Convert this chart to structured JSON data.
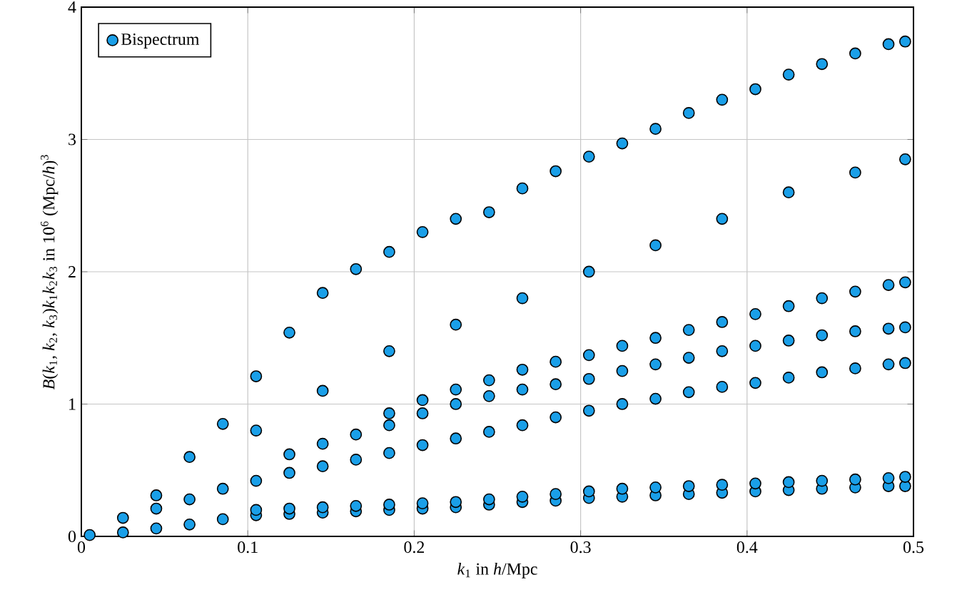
{
  "chart_data": {
    "type": "scatter",
    "xlabel": "*k*$_{1}$ in *h*/Mpc",
    "ylabel": "*B*(*k*$_{1}$, *k*$_{2}$, *k*$_{3}$)*k*$_{1}$*k*$_{2}$*k*$_{3}$ in 10$^{6}$ (Mpc/*h*)$^{3}$",
    "xlim": [
      0,
      0.5
    ],
    "ylim": [
      0,
      4
    ],
    "xticks": [
      0,
      0.1,
      0.2,
      0.3,
      0.4,
      0.5
    ],
    "yticks": [
      0,
      1,
      2,
      3,
      4
    ],
    "grid": true,
    "legend": "top left",
    "marker": "circle",
    "series": [
      {
        "name": "Bispectrum",
        "color": "#1a9fe8",
        "x": [
          0.005,
          0.025,
          0.045,
          0.065,
          0.085,
          0.105,
          0.125,
          0.145,
          0.165,
          0.185,
          0.205,
          0.225,
          0.245,
          0.265,
          0.285,
          0.305,
          0.325,
          0.345,
          0.365,
          0.385,
          0.405,
          0.425,
          0.445,
          0.465,
          0.485,
          0.495,
          0.025,
          0.045,
          0.065,
          0.085,
          0.105,
          0.125,
          0.145,
          0.165,
          0.185,
          0.205,
          0.225,
          0.245,
          0.265,
          0.285,
          0.305,
          0.325,
          0.345,
          0.365,
          0.385,
          0.405,
          0.425,
          0.445,
          0.465,
          0.485,
          0.495,
          0.105,
          0.125,
          0.145,
          0.165,
          0.185,
          0.205,
          0.225,
          0.245,
          0.265,
          0.285,
          0.305,
          0.325,
          0.345,
          0.365,
          0.385,
          0.405,
          0.425,
          0.445,
          0.465,
          0.485,
          0.495,
          0.045,
          0.065,
          0.085,
          0.105,
          0.125,
          0.145,
          0.165,
          0.185,
          0.205,
          0.225,
          0.245,
          0.265,
          0.285,
          0.305,
          0.325,
          0.345,
          0.365,
          0.385,
          0.405,
          0.425,
          0.445,
          0.465,
          0.485,
          0.495,
          0.125,
          0.145,
          0.165,
          0.185,
          0.205,
          0.225,
          0.245,
          0.265,
          0.285,
          0.305,
          0.325,
          0.345,
          0.365,
          0.385,
          0.405,
          0.425,
          0.445,
          0.465,
          0.485,
          0.495,
          0.185,
          0.205,
          0.225,
          0.245,
          0.265,
          0.285,
          0.305,
          0.325,
          0.345,
          0.365,
          0.385,
          0.405,
          0.425,
          0.445,
          0.465,
          0.485,
          0.495,
          0.105,
          0.145,
          0.185,
          0.225,
          0.265,
          0.305,
          0.345,
          0.385,
          0.425,
          0.465,
          0.495
        ],
        "values": [
          0.01,
          0.14,
          0.31,
          0.6,
          0.85,
          1.21,
          1.54,
          1.84,
          2.02,
          2.15,
          2.3,
          2.4,
          2.45,
          2.63,
          2.76,
          2.87,
          2.97,
          3.08,
          3.2,
          3.3,
          3.38,
          3.49,
          3.57,
          3.65,
          3.72,
          3.74,
          0.03,
          0.06,
          0.09,
          0.13,
          0.16,
          0.17,
          0.18,
          0.19,
          0.2,
          0.21,
          0.22,
          0.24,
          0.26,
          0.27,
          0.29,
          0.3,
          0.31,
          0.32,
          0.33,
          0.34,
          0.35,
          0.36,
          0.37,
          0.38,
          0.38,
          0.2,
          0.21,
          0.22,
          0.23,
          0.24,
          0.25,
          0.26,
          0.28,
          0.3,
          0.32,
          0.34,
          0.36,
          0.37,
          0.38,
          0.39,
          0.4,
          0.41,
          0.42,
          0.43,
          0.44,
          0.45,
          0.21,
          0.28,
          0.36,
          0.42,
          0.48,
          0.53,
          0.58,
          0.63,
          0.69,
          0.74,
          0.79,
          0.84,
          0.9,
          0.95,
          1.0,
          1.04,
          1.09,
          1.13,
          1.16,
          1.2,
          1.24,
          1.27,
          1.3,
          1.31,
          0.62,
          0.7,
          0.77,
          0.84,
          0.93,
          1.0,
          1.06,
          1.11,
          1.15,
          1.19,
          1.25,
          1.3,
          1.35,
          1.4,
          1.44,
          1.48,
          1.52,
          1.55,
          1.57,
          1.58,
          0.93,
          1.03,
          1.11,
          1.18,
          1.26,
          1.32,
          1.37,
          1.44,
          1.5,
          1.56,
          1.62,
          1.68,
          1.74,
          1.8,
          1.85,
          1.9,
          1.92,
          0.8,
          1.1,
          1.4,
          1.6,
          1.8,
          2.0,
          2.2,
          2.4,
          2.6,
          2.75,
          2.85
        ]
      }
    ]
  }
}
